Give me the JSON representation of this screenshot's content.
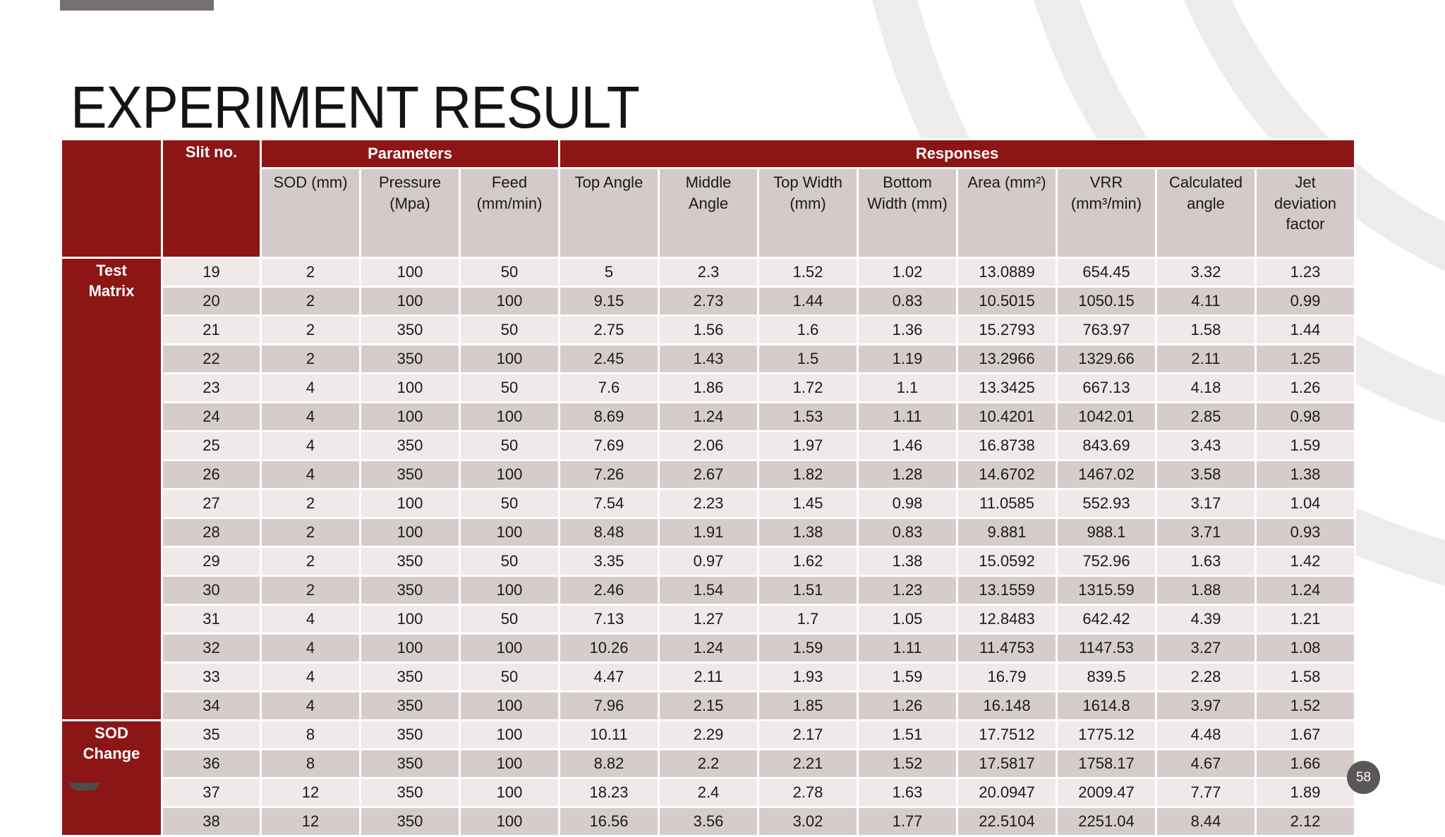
{
  "slide": {
    "title": "EXPERIMENT RESULT",
    "page_number": "58"
  },
  "colors": {
    "header_red": "#8c1616",
    "subheader_bg": "#d4caca",
    "row_light": "#efe9e9",
    "row_dark": "#d6cccc",
    "accent_bar_gray": "#757070",
    "badge_gray": "#5b5757",
    "watermark_gray": "#edebeb"
  },
  "table": {
    "slit_header": "Slit no.",
    "parameters_header": "Parameters",
    "responses_header": "Responses",
    "parameter_columns": [
      "SOD (mm)",
      "Pressure (Mpa)",
      "Feed (mm/min)"
    ],
    "response_columns": [
      "Top Angle",
      "Middle Angle",
      "Top Width (mm)",
      "Bottom Width (mm)",
      "Area (mm²)",
      "VRR (mm³/min)",
      "Calculated angle",
      "Jet deviation factor"
    ],
    "groups": [
      {
        "label": "Test Matrix",
        "rows": [
          [
            "19",
            "2",
            "100",
            "50",
            "5",
            "2.3",
            "1.52",
            "1.02",
            "13.0889",
            "654.45",
            "3.32",
            "1.23"
          ],
          [
            "20",
            "2",
            "100",
            "100",
            "9.15",
            "2.73",
            "1.44",
            "0.83",
            "10.5015",
            "1050.15",
            "4.11",
            "0.99"
          ],
          [
            "21",
            "2",
            "350",
            "50",
            "2.75",
            "1.56",
            "1.6",
            "1.36",
            "15.2793",
            "763.97",
            "1.58",
            "1.44"
          ],
          [
            "22",
            "2",
            "350",
            "100",
            "2.45",
            "1.43",
            "1.5",
            "1.19",
            "13.2966",
            "1329.66",
            "2.11",
            "1.25"
          ],
          [
            "23",
            "4",
            "100",
            "50",
            "7.6",
            "1.86",
            "1.72",
            "1.1",
            "13.3425",
            "667.13",
            "4.18",
            "1.26"
          ],
          [
            "24",
            "4",
            "100",
            "100",
            "8.69",
            "1.24",
            "1.53",
            "1.11",
            "10.4201",
            "1042.01",
            "2.85",
            "0.98"
          ],
          [
            "25",
            "4",
            "350",
            "50",
            "7.69",
            "2.06",
            "1.97",
            "1.46",
            "16.8738",
            "843.69",
            "3.43",
            "1.59"
          ],
          [
            "26",
            "4",
            "350",
            "100",
            "7.26",
            "2.67",
            "1.82",
            "1.28",
            "14.6702",
            "1467.02",
            "3.58",
            "1.38"
          ],
          [
            "27",
            "2",
            "100",
            "50",
            "7.54",
            "2.23",
            "1.45",
            "0.98",
            "11.0585",
            "552.93",
            "3.17",
            "1.04"
          ],
          [
            "28",
            "2",
            "100",
            "100",
            "8.48",
            "1.91",
            "1.38",
            "0.83",
            "9.881",
            "988.1",
            "3.71",
            "0.93"
          ],
          [
            "29",
            "2",
            "350",
            "50",
            "3.35",
            "0.97",
            "1.62",
            "1.38",
            "15.0592",
            "752.96",
            "1.63",
            "1.42"
          ],
          [
            "30",
            "2",
            "350",
            "100",
            "2.46",
            "1.54",
            "1.51",
            "1.23",
            "13.1559",
            "1315.59",
            "1.88",
            "1.24"
          ],
          [
            "31",
            "4",
            "100",
            "50",
            "7.13",
            "1.27",
            "1.7",
            "1.05",
            "12.8483",
            "642.42",
            "4.39",
            "1.21"
          ],
          [
            "32",
            "4",
            "100",
            "100",
            "10.26",
            "1.24",
            "1.59",
            "1.11",
            "11.4753",
            "1147.53",
            "3.27",
            "1.08"
          ],
          [
            "33",
            "4",
            "350",
            "50",
            "4.47",
            "2.11",
            "1.93",
            "1.59",
            "16.79",
            "839.5",
            "2.28",
            "1.58"
          ],
          [
            "34",
            "4",
            "350",
            "100",
            "7.96",
            "2.15",
            "1.85",
            "1.26",
            "16.148",
            "1614.8",
            "3.97",
            "1.52"
          ]
        ]
      },
      {
        "label": "SOD Change",
        "rows": [
          [
            "35",
            "8",
            "350",
            "100",
            "10.11",
            "2.29",
            "2.17",
            "1.51",
            "17.7512",
            "1775.12",
            "4.48",
            "1.67"
          ],
          [
            "36",
            "8",
            "350",
            "100",
            "8.82",
            "2.2",
            "2.21",
            "1.52",
            "17.5817",
            "1758.17",
            "4.67",
            "1.66"
          ],
          [
            "37",
            "12",
            "350",
            "100",
            "18.23",
            "2.4",
            "2.78",
            "1.63",
            "20.0947",
            "2009.47",
            "7.77",
            "1.89"
          ],
          [
            "38",
            "12",
            "350",
            "100",
            "16.56",
            "3.56",
            "3.02",
            "1.77",
            "22.5104",
            "2251.04",
            "8.44",
            "2.12"
          ]
        ]
      }
    ]
  }
}
